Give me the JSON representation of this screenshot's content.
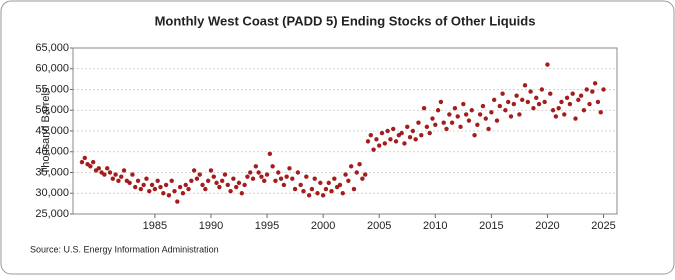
{
  "chart_data": {
    "type": "scatter",
    "title": "Monthly West Coast (PADD 5) Ending Stocks of Other Liquids",
    "y_label": "Thousand Barrels",
    "source": "Source: U.S. Energy Information Administration",
    "color": "#a51c1c",
    "grid": true,
    "xlim": [
      1977.7,
      2026.2
    ],
    "xticks": [
      1985,
      1990,
      1995,
      2000,
      2005,
      2010,
      2015,
      2020,
      2025
    ],
    "ylim": [
      25000,
      65000
    ],
    "yticks": [
      {
        "value": 25000,
        "label": "25,000"
      },
      {
        "value": 30000,
        "label": "30,000"
      },
      {
        "value": 35000,
        "label": "35,000"
      },
      {
        "value": 40000,
        "label": "40,000"
      },
      {
        "value": 45000,
        "label": "45,000"
      },
      {
        "value": 50000,
        "label": "50,000"
      },
      {
        "value": 55000,
        "label": "55,000"
      },
      {
        "value": 60000,
        "label": "60,000"
      },
      {
        "value": 65000,
        "label": "65,000"
      }
    ],
    "x": [
      1978.5,
      1978.75,
      1979,
      1979.25,
      1979.5,
      1979.75,
      1980,
      1980.25,
      1980.5,
      1980.75,
      1981,
      1981.25,
      1981.5,
      1981.75,
      1982,
      1982.25,
      1982.5,
      1982.75,
      1983,
      1983.25,
      1983.5,
      1983.75,
      1984,
      1984.25,
      1984.5,
      1984.75,
      1985,
      1985.25,
      1985.5,
      1985.75,
      1986,
      1986.25,
      1986.5,
      1986.75,
      1987,
      1987.25,
      1987.5,
      1987.75,
      1988,
      1988.25,
      1988.5,
      1988.75,
      1989,
      1989.25,
      1989.5,
      1989.75,
      1990,
      1990.25,
      1990.5,
      1990.75,
      1991,
      1991.25,
      1991.5,
      1991.75,
      1992,
      1992.25,
      1992.5,
      1992.75,
      1993,
      1993.25,
      1993.5,
      1993.75,
      1994,
      1994.25,
      1994.5,
      1994.75,
      1995,
      1995.25,
      1995.5,
      1995.75,
      1996,
      1996.25,
      1996.5,
      1996.75,
      1997,
      1997.25,
      1997.5,
      1997.75,
      1998,
      1998.25,
      1998.5,
      1998.75,
      1999,
      1999.25,
      1999.5,
      1999.75,
      2000,
      2000.25,
      2000.5,
      2000.75,
      2001,
      2001.25,
      2001.5,
      2001.75,
      2002,
      2002.25,
      2002.5,
      2002.75,
      2003,
      2003.25,
      2003.5,
      2003.75,
      2004,
      2004.25,
      2004.5,
      2004.75,
      2005,
      2005.25,
      2005.5,
      2005.75,
      2006,
      2006.25,
      2006.5,
      2006.75,
      2007,
      2007.25,
      2007.5,
      2007.75,
      2008,
      2008.25,
      2008.5,
      2008.75,
      2009,
      2009.25,
      2009.5,
      2009.75,
      2010,
      2010.25,
      2010.5,
      2010.75,
      2011,
      2011.25,
      2011.5,
      2011.75,
      2012,
      2012.25,
      2012.5,
      2012.75,
      2013,
      2013.25,
      2013.5,
      2013.75,
      2014,
      2014.25,
      2014.5,
      2014.75,
      2015,
      2015.25,
      2015.5,
      2015.75,
      2016,
      2016.25,
      2016.5,
      2016.75,
      2017,
      2017.25,
      2017.5,
      2017.75,
      2018,
      2018.25,
      2018.5,
      2018.75,
      2019,
      2019.25,
      2019.5,
      2019.75,
      2020,
      2020.25,
      2020.5,
      2020.75,
      2021,
      2021.25,
      2021.5,
      2021.75,
      2022,
      2022.25,
      2022.5,
      2022.75,
      2023,
      2023.25,
      2023.5,
      2023.75,
      2024,
      2024.25,
      2024.5,
      2024.75,
      2025
    ],
    "values": [
      37500,
      38500,
      37000,
      36500,
      37500,
      35500,
      36000,
      35000,
      34500,
      36000,
      35000,
      33500,
      34500,
      33000,
      34000,
      35500,
      33000,
      32500,
      34500,
      31500,
      33000,
      31000,
      32000,
      33500,
      30500,
      32000,
      31000,
      33000,
      31500,
      30000,
      32000,
      29500,
      33000,
      30500,
      28000,
      31500,
      30000,
      32000,
      31000,
      33000,
      35500,
      33500,
      34500,
      32000,
      31000,
      33000,
      35500,
      34000,
      32500,
      31500,
      33000,
      34500,
      32000,
      30500,
      33500,
      31500,
      32500,
      30000,
      32000,
      34000,
      35000,
      33500,
      36500,
      35000,
      34000,
      33000,
      34500,
      39500,
      36500,
      33000,
      35000,
      33500,
      32000,
      34000,
      36000,
      33500,
      31000,
      35000,
      32000,
      30500,
      34000,
      29500,
      31000,
      33500,
      30000,
      32500,
      29500,
      31000,
      32500,
      30500,
      33500,
      31500,
      32000,
      30000,
      34500,
      33000,
      36500,
      31000,
      35000,
      37000,
      33500,
      34500,
      42500,
      44000,
      40500,
      43000,
      41500,
      44500,
      42000,
      45000,
      43000,
      45500,
      42500,
      44000,
      44500,
      42000,
      46000,
      43500,
      45000,
      43000,
      47000,
      44000,
      50500,
      46000,
      44500,
      48000,
      46500,
      50000,
      52000,
      47000,
      45500,
      49000,
      47000,
      50500,
      48500,
      46000,
      51500,
      49000,
      47500,
      50000,
      44000,
      46500,
      49000,
      51000,
      48000,
      45500,
      49500,
      52500,
      47500,
      51000,
      54000,
      50000,
      52000,
      48500,
      51500,
      53500,
      49000,
      52500,
      56000,
      52000,
      54500,
      50500,
      53000,
      51500,
      55000,
      52000,
      61000,
      54000,
      50000,
      48500,
      50500,
      52000,
      49000,
      53000,
      51500,
      54000,
      48000,
      52500,
      53500,
      50000,
      55000,
      51500,
      54500,
      56500,
      52000,
      49500,
      55000
    ]
  }
}
